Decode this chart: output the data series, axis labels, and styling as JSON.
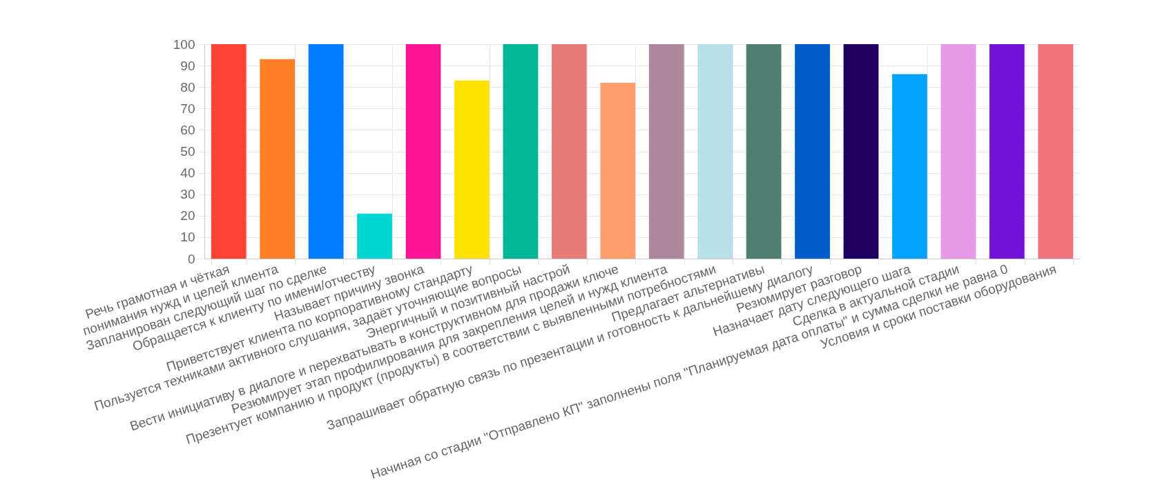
{
  "chart_data": {
    "type": "bar",
    "categories": [
      "Речь грамотная и чёткая",
      "понимания нужд и целей клиента",
      "Запланирован следующий шаг по сделке",
      "Обращается к клиенту по имени/отчеству",
      "Называет причину звонка",
      "Приветствует клиента по корпоративному стандарту",
      "Пользуется техниками активного слушания, задаёт уточняющие вопросы",
      "Энергичный и позитивный настрой",
      "Вести инициативу в диалоге и перехватывать в конструктивном для продажи ключе",
      "Резюмирует этап профилирования для закрепления целей и нужд клиента",
      "Презентует компанию и продукт (продукты) в соответствии с выявленными потребностями",
      "Предлагает альтернативы",
      "Запрашивает обратную связь по презентации и готовность к дальнейшему диалогу",
      "Резюмирует разговор",
      "Назначает дату следующего шага",
      "Сделка в актуальной стадии",
      "Начиная со стадии \"Отправлено КП\" заполнены поля \"Планируемая дата оплаты\" и сумма сделки не равна 0",
      "Условия и сроки поставки оборудования"
    ],
    "values": [
      100,
      93,
      100,
      21,
      100,
      83,
      100,
      100,
      82,
      100,
      100,
      100,
      100,
      100,
      86,
      100,
      100,
      100
    ],
    "colors": [
      "#ff4433",
      "#ff7f27",
      "#007bff",
      "#00d5cf",
      "#ff1493",
      "#ffe300",
      "#00b694",
      "#e57d77",
      "#ff9f6e",
      "#ab899b",
      "#b8e0e8",
      "#507f73",
      "#005cc8",
      "#1e0063",
      "#00a2ff",
      "#e49ae4",
      "#7013d6",
      "#ee737c"
    ],
    "ylim": [
      0,
      100
    ],
    "yticks": [
      0,
      10,
      20,
      30,
      40,
      50,
      60,
      70,
      80,
      90,
      100
    ],
    "grid": true
  }
}
